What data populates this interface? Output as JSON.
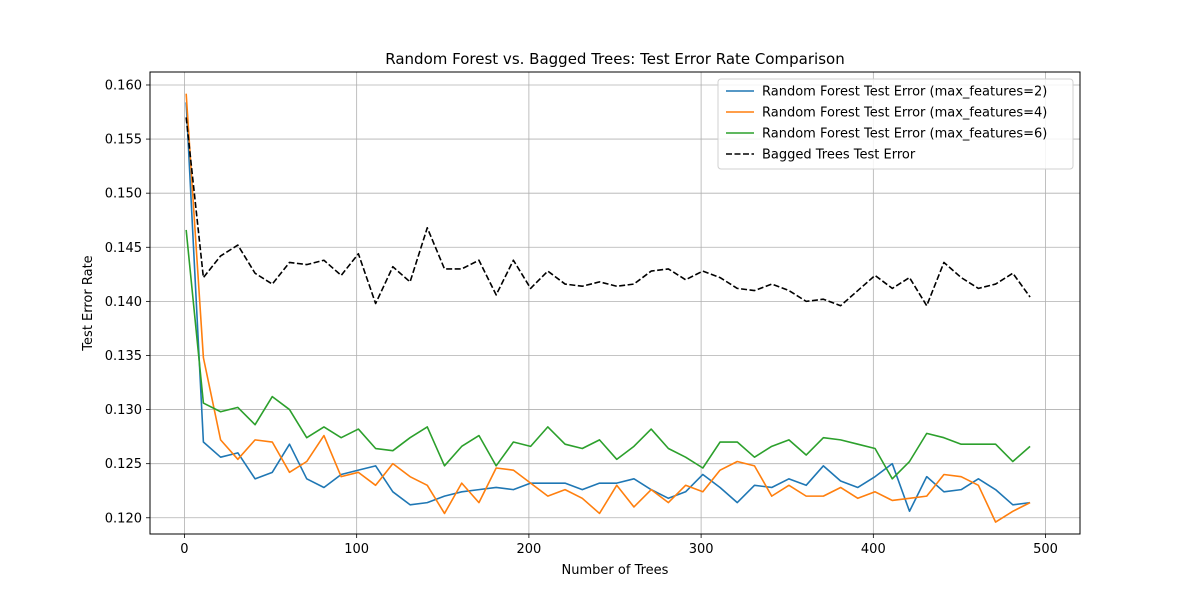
{
  "chart_data": {
    "type": "line",
    "title": "Random Forest vs. Bagged Trees: Test Error Rate Comparison",
    "xlabel": "Number of Trees",
    "ylabel": "Test Error Rate",
    "xlim": [
      -20,
      520
    ],
    "ylim": [
      0.1185,
      0.1612
    ],
    "x_ticks": [
      0,
      100,
      200,
      300,
      400,
      500
    ],
    "x_tick_labels": [
      "0",
      "100",
      "200",
      "300",
      "400",
      "500"
    ],
    "y_ticks": [
      0.12,
      0.125,
      0.13,
      0.135,
      0.14,
      0.145,
      0.15,
      0.155,
      0.16
    ],
    "y_tick_labels": [
      "0.120",
      "0.125",
      "0.130",
      "0.135",
      "0.140",
      "0.145",
      "0.150",
      "0.155",
      "0.160"
    ],
    "grid": true,
    "legend_position": "top-right",
    "x": [
      1,
      11,
      21,
      31,
      41,
      51,
      61,
      71,
      81,
      91,
      101,
      111,
      121,
      131,
      141,
      151,
      161,
      171,
      181,
      191,
      201,
      211,
      221,
      231,
      241,
      251,
      261,
      271,
      281,
      291,
      301,
      311,
      321,
      331,
      341,
      351,
      361,
      371,
      381,
      391,
      401,
      411,
      421,
      431,
      441,
      451,
      461,
      471,
      481,
      491
    ],
    "series": [
      {
        "name": "Random Forest Test Error (max_features=2)",
        "color": "#1f77b4",
        "dash": "solid",
        "values": [
          0.1584,
          0.127,
          0.1256,
          0.126,
          0.1236,
          0.1242,
          0.1268,
          0.1236,
          0.1228,
          0.124,
          0.1244,
          0.1248,
          0.1224,
          0.1212,
          0.1214,
          0.122,
          0.1224,
          0.1226,
          0.1228,
          0.1226,
          0.1232,
          0.1232,
          0.1232,
          0.1226,
          0.1232,
          0.1232,
          0.1236,
          0.1226,
          0.1218,
          0.1224,
          0.124,
          0.1228,
          0.1214,
          0.123,
          0.1228,
          0.1236,
          0.123,
          0.1248,
          0.1234,
          0.1228,
          0.1238,
          0.125,
          0.1206,
          0.1238,
          0.1224,
          0.1226,
          0.1236,
          0.1226,
          0.1212,
          0.1214
        ]
      },
      {
        "name": "Random Forest Test Error (max_features=4)",
        "color": "#ff7f0e",
        "dash": "solid",
        "values": [
          0.1592,
          0.1348,
          0.1272,
          0.1254,
          0.1272,
          0.127,
          0.1242,
          0.1252,
          0.1276,
          0.1238,
          0.1242,
          0.123,
          0.125,
          0.1238,
          0.123,
          0.1204,
          0.1232,
          0.1214,
          0.1246,
          0.1244,
          0.1232,
          0.122,
          0.1226,
          0.1218,
          0.1204,
          0.123,
          0.121,
          0.1226,
          0.1214,
          0.123,
          0.1224,
          0.1244,
          0.1252,
          0.1248,
          0.122,
          0.123,
          0.122,
          0.122,
          0.1228,
          0.1218,
          0.1224,
          0.1216,
          0.1218,
          0.122,
          0.124,
          0.1238,
          0.123,
          0.1196,
          0.1206,
          0.1214
        ]
      },
      {
        "name": "Random Forest Test Error (max_features=6)",
        "color": "#2ca02c",
        "dash": "solid",
        "values": [
          0.1466,
          0.1306,
          0.1298,
          0.1302,
          0.1286,
          0.1312,
          0.13,
          0.1274,
          0.1284,
          0.1274,
          0.1282,
          0.1264,
          0.1262,
          0.1274,
          0.1284,
          0.1248,
          0.1266,
          0.1276,
          0.1248,
          0.127,
          0.1266,
          0.1284,
          0.1268,
          0.1264,
          0.1272,
          0.1254,
          0.1266,
          0.1282,
          0.1264,
          0.1256,
          0.1246,
          0.127,
          0.127,
          0.1256,
          0.1266,
          0.1272,
          0.1258,
          0.1274,
          0.1272,
          0.1268,
          0.1264,
          0.1236,
          0.1252,
          0.1278,
          0.1274,
          0.1268,
          0.1268,
          0.1268,
          0.1252,
          0.1266
        ]
      },
      {
        "name": "Bagged Trees Test Error",
        "color": "#000000",
        "dash": "dashed",
        "values": [
          0.157,
          0.1422,
          0.1442,
          0.1452,
          0.1426,
          0.1416,
          0.1436,
          0.1434,
          0.1438,
          0.1424,
          0.1444,
          0.1398,
          0.1432,
          0.1418,
          0.1468,
          0.143,
          0.143,
          0.1438,
          0.1406,
          0.1438,
          0.1412,
          0.1428,
          0.1416,
          0.1414,
          0.1418,
          0.1414,
          0.1416,
          0.1428,
          0.143,
          0.142,
          0.1428,
          0.1422,
          0.1412,
          0.141,
          0.1416,
          0.141,
          0.14,
          0.1402,
          0.1396,
          0.141,
          0.1424,
          0.1412,
          0.1422,
          0.1396,
          0.1436,
          0.1422,
          0.1412,
          0.1416,
          0.1426,
          0.1404
        ]
      }
    ]
  }
}
